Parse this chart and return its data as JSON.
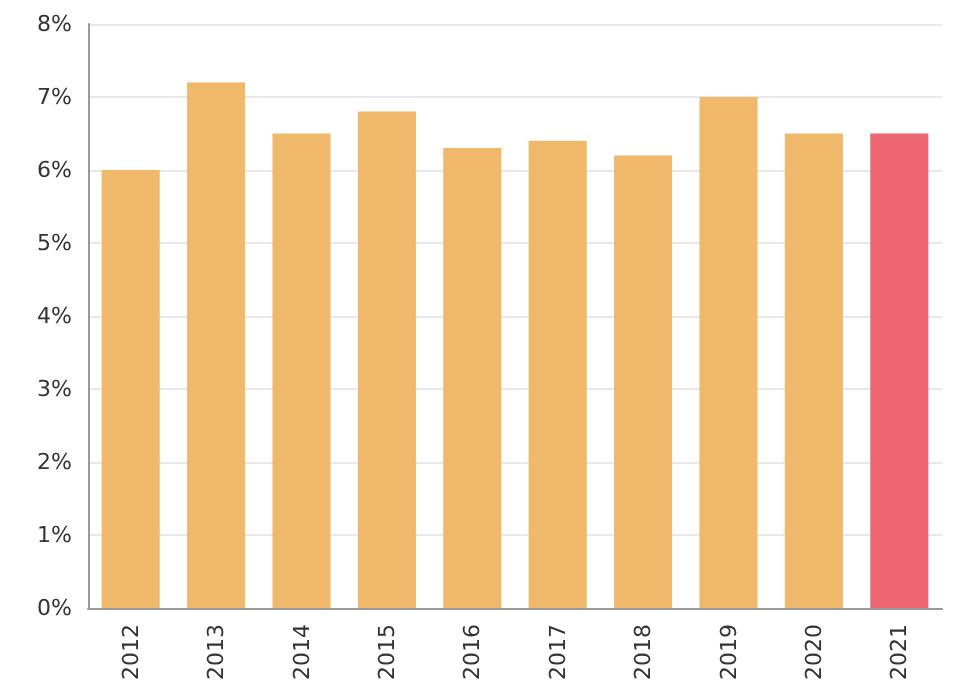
{
  "chart_data": {
    "type": "bar",
    "categories": [
      "2012",
      "2013",
      "2014",
      "2015",
      "2016",
      "2017",
      "2018",
      "2019",
      "2020",
      "2021"
    ],
    "values": [
      6.0,
      7.2,
      6.5,
      6.8,
      6.3,
      6.4,
      6.2,
      7.0,
      6.5,
      6.5
    ],
    "colors": [
      "#f0b86b",
      "#f0b86b",
      "#f0b86b",
      "#f0b86b",
      "#f0b86b",
      "#f0b86b",
      "#f0b86b",
      "#f0b86b",
      "#f0b86b",
      "#ec6570"
    ],
    "ylim": [
      0,
      8
    ],
    "yticks": [
      {
        "value": 0,
        "label": "0%"
      },
      {
        "value": 1,
        "label": "1%"
      },
      {
        "value": 2,
        "label": "2%"
      },
      {
        "value": 3,
        "label": "3%"
      },
      {
        "value": 4,
        "label": "4%"
      },
      {
        "value": 5,
        "label": "5%"
      },
      {
        "value": 6,
        "label": "6%"
      },
      {
        "value": 7,
        "label": "7%"
      },
      {
        "value": 8,
        "label": "8%"
      }
    ],
    "grid": "y"
  }
}
